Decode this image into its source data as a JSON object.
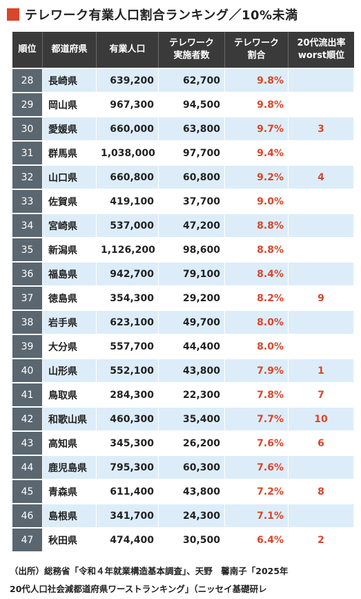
{
  "title": "テレワーク有業人口割合ランキング／10%未満",
  "chart_data": {
    "type": "table",
    "columns": [
      "順位",
      "都道府県",
      "有業人口",
      "テレワーク\n実施者数",
      "テレワーク\n割合",
      "20代流出率\nworst順位"
    ],
    "rows": [
      {
        "rank": "28",
        "prefecture": "長崎県",
        "employed": "639,200",
        "telework": "62,700",
        "ratio": "9.8%",
        "worst": ""
      },
      {
        "rank": "29",
        "prefecture": "岡山県",
        "employed": "967,300",
        "telework": "94,500",
        "ratio": "9.8%",
        "worst": ""
      },
      {
        "rank": "30",
        "prefecture": "愛媛県",
        "employed": "660,000",
        "telework": "63,800",
        "ratio": "9.7%",
        "worst": "3"
      },
      {
        "rank": "31",
        "prefecture": "群馬県",
        "employed": "1,038,000",
        "telework": "97,700",
        "ratio": "9.4%",
        "worst": ""
      },
      {
        "rank": "32",
        "prefecture": "山口県",
        "employed": "660,800",
        "telework": "60,800",
        "ratio": "9.2%",
        "worst": "4"
      },
      {
        "rank": "33",
        "prefecture": "佐賀県",
        "employed": "419,100",
        "telework": "37,700",
        "ratio": "9.0%",
        "worst": ""
      },
      {
        "rank": "34",
        "prefecture": "宮崎県",
        "employed": "537,000",
        "telework": "47,200",
        "ratio": "8.8%",
        "worst": ""
      },
      {
        "rank": "35",
        "prefecture": "新潟県",
        "employed": "1,126,200",
        "telework": "98,600",
        "ratio": "8.8%",
        "worst": ""
      },
      {
        "rank": "36",
        "prefecture": "福島県",
        "employed": "942,700",
        "telework": "79,100",
        "ratio": "8.4%",
        "worst": ""
      },
      {
        "rank": "37",
        "prefecture": "徳島県",
        "employed": "354,300",
        "telework": "29,200",
        "ratio": "8.2%",
        "worst": "9"
      },
      {
        "rank": "38",
        "prefecture": "岩手県",
        "employed": "623,100",
        "telework": "49,700",
        "ratio": "8.0%",
        "worst": ""
      },
      {
        "rank": "39",
        "prefecture": "大分県",
        "employed": "557,700",
        "telework": "44,400",
        "ratio": "8.0%",
        "worst": ""
      },
      {
        "rank": "40",
        "prefecture": "山形県",
        "employed": "552,100",
        "telework": "43,800",
        "ratio": "7.9%",
        "worst": "1"
      },
      {
        "rank": "41",
        "prefecture": "鳥取県",
        "employed": "284,300",
        "telework": "22,300",
        "ratio": "7.8%",
        "worst": "7"
      },
      {
        "rank": "42",
        "prefecture": "和歌山県",
        "employed": "460,300",
        "telework": "35,400",
        "ratio": "7.7%",
        "worst": "10"
      },
      {
        "rank": "43",
        "prefecture": "高知県",
        "employed": "345,300",
        "telework": "26,200",
        "ratio": "7.6%",
        "worst": "6"
      },
      {
        "rank": "44",
        "prefecture": "鹿児島県",
        "employed": "795,300",
        "telework": "60,300",
        "ratio": "7.6%",
        "worst": ""
      },
      {
        "rank": "45",
        "prefecture": "青森県",
        "employed": "611,400",
        "telework": "43,800",
        "ratio": "7.2%",
        "worst": "8"
      },
      {
        "rank": "46",
        "prefecture": "島根県",
        "employed": "341,700",
        "telework": "24,300",
        "ratio": "7.1%",
        "worst": ""
      },
      {
        "rank": "47",
        "prefecture": "秋田県",
        "employed": "474,400",
        "telework": "30,500",
        "ratio": "6.4%",
        "worst": "2"
      }
    ]
  },
  "footer": {
    "line1": "（出所）総務省「令和４年就業構造基本調査」、天野　馨南子「2025年",
    "line2": "20代人口社会減都道府県ワーストランキング」（ニッセイ基礎研レ"
  },
  "colors": {
    "accent": "#d9462b",
    "header_bg": "#3a3a3a",
    "rank_bg": "#5b6770",
    "row_alt": "#dcedf9"
  }
}
